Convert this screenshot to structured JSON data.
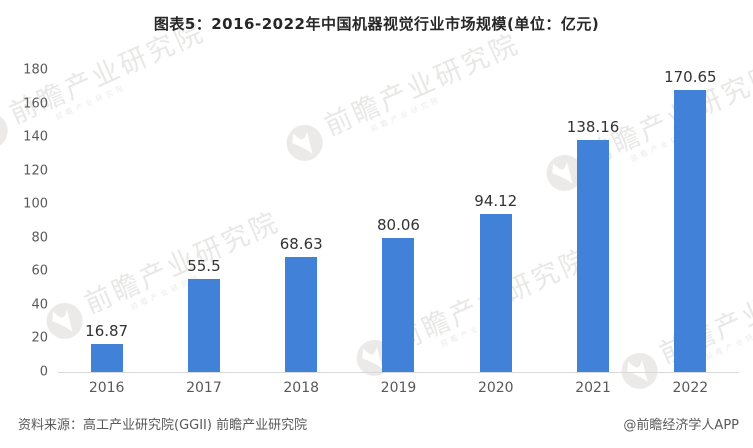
{
  "title": "图表5：2016-2022年中国机器视觉行业市场规模(单位：亿元)",
  "chart_data": {
    "type": "bar",
    "title": "图表5：2016-2022年中国机器视觉行业市场规模(单位：亿元)",
    "categories": [
      "2016",
      "2017",
      "2018",
      "2019",
      "2020",
      "2021",
      "2022"
    ],
    "values": [
      16.87,
      55.5,
      68.63,
      80.06,
      94.12,
      138.16,
      170.65
    ],
    "value_labels": [
      "16.87",
      "55.5",
      "68.63",
      "80.06",
      "94.12",
      "138.16",
      "170.65"
    ],
    "xlabel": "",
    "ylabel": "",
    "ylim": [
      0,
      180
    ],
    "yticks": [
      0,
      20,
      40,
      60,
      80,
      100,
      120,
      140,
      160,
      180
    ],
    "grid": false,
    "legend": "none",
    "unit": "亿元"
  },
  "colors": {
    "bar": "#4181d8",
    "axis_line": "#d9d9d9",
    "tick_text": "#595959",
    "value_text": "#333333",
    "title_text": "#262626"
  },
  "footer": {
    "source": "资料来源：高工产业研究院(GGII) 前瞻产业研究院",
    "credit": "@前瞻经济学人APP"
  },
  "watermark": {
    "logo": "qianzhan-logo",
    "text": "前瞻产业研究院"
  }
}
